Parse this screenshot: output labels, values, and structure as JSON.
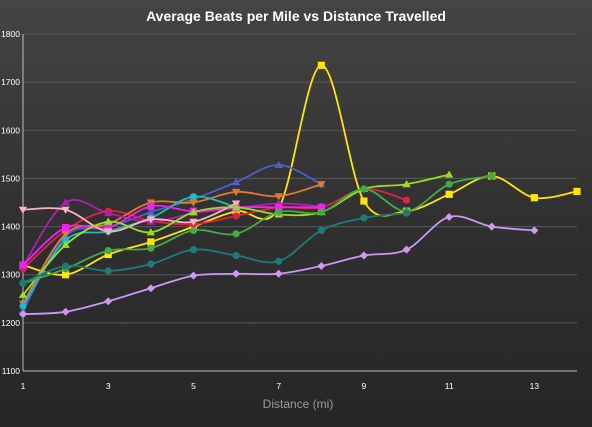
{
  "chart_data": {
    "type": "line",
    "title": "Average Beats per Mile vs Distance Travelled",
    "xlabel": "Distance (mi)",
    "ylabel": "",
    "xlim": [
      1,
      14
    ],
    "ylim": [
      1100,
      1800
    ],
    "x_ticks": [
      1,
      3,
      5,
      7,
      9,
      11,
      13
    ],
    "y_ticks": [
      1100,
      1200,
      1300,
      1400,
      1500,
      1600,
      1700,
      1800
    ],
    "grid": true,
    "legend": "none",
    "series": [
      {
        "color": "#FFE600",
        "marker": "square",
        "points": [
          [
            1,
            1320
          ],
          [
            2,
            1300
          ],
          [
            3,
            1342
          ],
          [
            4,
            1368
          ],
          [
            5,
            1400
          ],
          [
            6,
            1432
          ],
          [
            7,
            1438
          ],
          [
            8,
            1735
          ],
          [
            9,
            1453
          ],
          [
            10,
            1432
          ],
          [
            11,
            1467
          ],
          [
            12,
            1505
          ],
          [
            13,
            1460
          ],
          [
            14,
            1473
          ]
        ]
      },
      {
        "color": "#4E5FCC",
        "marker": "triangle-up",
        "points": [
          [
            1,
            1225
          ],
          [
            2,
            1380
          ],
          [
            3,
            1398
          ],
          [
            4,
            1430
          ],
          [
            5,
            1457
          ],
          [
            6,
            1492
          ],
          [
            7,
            1528
          ],
          [
            8,
            1488
          ]
        ]
      },
      {
        "color": "#DD2244",
        "marker": "circle",
        "points": [
          [
            1,
            1312
          ],
          [
            2,
            1392
          ],
          [
            3,
            1432
          ],
          [
            4,
            1412
          ],
          [
            5,
            1405
          ],
          [
            6,
            1422
          ],
          [
            7,
            1440
          ],
          [
            8,
            1440
          ],
          [
            9,
            1478
          ],
          [
            10,
            1455
          ]
        ]
      },
      {
        "color": "#E07A30",
        "marker": "triangle-down",
        "points": [
          [
            1,
            1240
          ],
          [
            2,
            1385
          ],
          [
            3,
            1405
          ],
          [
            4,
            1450
          ],
          [
            5,
            1450
          ],
          [
            6,
            1472
          ],
          [
            7,
            1463
          ],
          [
            8,
            1488
          ]
        ]
      },
      {
        "color": "#22BBBB",
        "marker": "circle",
        "points": [
          [
            1,
            1235
          ],
          [
            2,
            1372
          ],
          [
            3,
            1390
          ],
          [
            4,
            1418
          ],
          [
            5,
            1462
          ],
          [
            6,
            1440
          ]
        ]
      },
      {
        "color": "#AA22AA",
        "marker": "triangle-up",
        "points": [
          [
            1,
            1318
          ],
          [
            2,
            1450
          ],
          [
            3,
            1428
          ],
          [
            4,
            1410
          ],
          [
            5,
            1428
          ],
          [
            6,
            1438
          ],
          [
            7,
            1448
          ],
          [
            8,
            1442
          ]
        ]
      },
      {
        "color": "#EE22EE",
        "marker": "square",
        "points": [
          [
            1,
            1320
          ],
          [
            2,
            1398
          ],
          [
            3,
            1398
          ],
          [
            4,
            1442
          ],
          [
            5,
            1432
          ],
          [
            6,
            1440
          ],
          [
            7,
            1440
          ],
          [
            8,
            1440
          ]
        ]
      },
      {
        "color": "#FFB0C0",
        "marker": "triangle-down",
        "points": [
          [
            1,
            1435
          ],
          [
            2,
            1435
          ],
          [
            3,
            1390
          ],
          [
            4,
            1415
          ],
          [
            5,
            1410
          ],
          [
            6,
            1448
          ]
        ]
      },
      {
        "color": "#99DD22",
        "marker": "triangle-up",
        "points": [
          [
            1,
            1258
          ],
          [
            2,
            1362
          ],
          [
            3,
            1410
          ],
          [
            4,
            1388
          ],
          [
            5,
            1430
          ],
          [
            6,
            1440
          ],
          [
            7,
            1425
          ],
          [
            8,
            1430
          ],
          [
            9,
            1478
          ],
          [
            10,
            1488
          ],
          [
            11,
            1508
          ]
        ]
      },
      {
        "color": "#44AA44",
        "marker": "circle",
        "points": [
          [
            1,
            1282
          ],
          [
            2,
            1312
          ],
          [
            3,
            1350
          ],
          [
            4,
            1355
          ],
          [
            5,
            1392
          ],
          [
            6,
            1385
          ],
          [
            7,
            1430
          ],
          [
            8,
            1430
          ],
          [
            9,
            1478
          ],
          [
            10,
            1432
          ],
          [
            11,
            1488
          ],
          [
            12,
            1505
          ]
        ]
      },
      {
        "color": "#1E7A7A",
        "marker": "circle",
        "points": [
          [
            1,
            1283
          ],
          [
            2,
            1318
          ],
          [
            3,
            1308
          ],
          [
            4,
            1322
          ],
          [
            5,
            1352
          ],
          [
            6,
            1340
          ],
          [
            7,
            1328
          ],
          [
            8,
            1392
          ],
          [
            9,
            1418
          ],
          [
            10,
            1428
          ]
        ]
      },
      {
        "color": "#CC99EE",
        "marker": "diamond",
        "points": [
          [
            1,
            1218
          ],
          [
            2,
            1223
          ],
          [
            3,
            1245
          ],
          [
            4,
            1272
          ],
          [
            5,
            1298
          ],
          [
            6,
            1302
          ],
          [
            7,
            1302
          ],
          [
            8,
            1318
          ],
          [
            9,
            1340
          ],
          [
            10,
            1352
          ],
          [
            11,
            1420
          ],
          [
            12,
            1400
          ],
          [
            13,
            1392
          ]
        ]
      }
    ]
  }
}
